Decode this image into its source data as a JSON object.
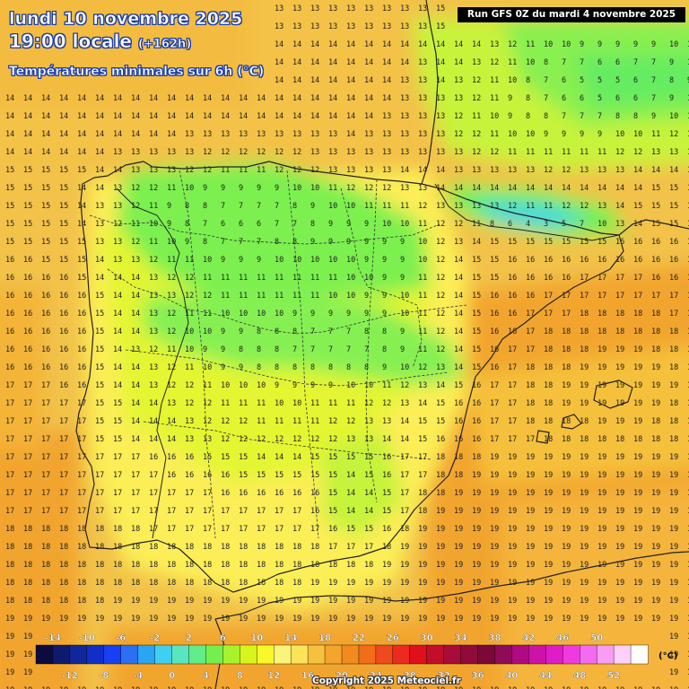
{
  "header": {
    "title_line1": "lundi 10 novembre 2025",
    "title_line2": "19:00 locale",
    "title_line2_offset": "(+162h)",
    "subtitle": "Températures minimales sur 6h (°C)",
    "run_info": "Run GFS 0Z du mardi 4 novembre 2025",
    "copyright": "Copyright 2025 Meteociel.fr"
  },
  "legend": {
    "unit": "(°C)",
    "top_labels": [
      "-14",
      "-10",
      "-6",
      "-2",
      "2",
      "6",
      "10",
      "14",
      "18",
      "22",
      "26",
      "30",
      "34",
      "38",
      "42",
      "46",
      "50"
    ],
    "bottom_labels": [
      "-12",
      "-8",
      "-4",
      "0",
      "4",
      "8",
      "12",
      "16",
      "20",
      "24",
      "28",
      "32",
      "36",
      "40",
      "44",
      "48",
      "52"
    ],
    "colors": [
      "#0b0b40",
      "#0e1a6e",
      "#10279b",
      "#0f2fc8",
      "#1640f2",
      "#2b6ff2",
      "#2aa5f2",
      "#3fd0f0",
      "#58e6c0",
      "#62ec8a",
      "#74f04e",
      "#a6f22e",
      "#d6f51c",
      "#f8f82a",
      "#fbf47a",
      "#fbe45a",
      "#f6c23e",
      "#f3a52c",
      "#f28a1e",
      "#f26d18",
      "#f04a1c",
      "#ee2a1e",
      "#e00f1c",
      "#c40d28",
      "#a80c3a",
      "#900a3a",
      "#7a0838",
      "#900a5a",
      "#b00a82",
      "#cc12a8",
      "#e01cc8",
      "#f03ae0",
      "#f46af0",
      "#f89cf6",
      "#fcd0fa",
      "#ffffff"
    ]
  },
  "colors": {
    "coast": "#222222",
    "header_text": "#ffffff",
    "header_outline": "#1d3ea8"
  },
  "map_data": {
    "description_values_degC": "temperature grid",
    "range_min": 1,
    "range_max": 19
  }
}
